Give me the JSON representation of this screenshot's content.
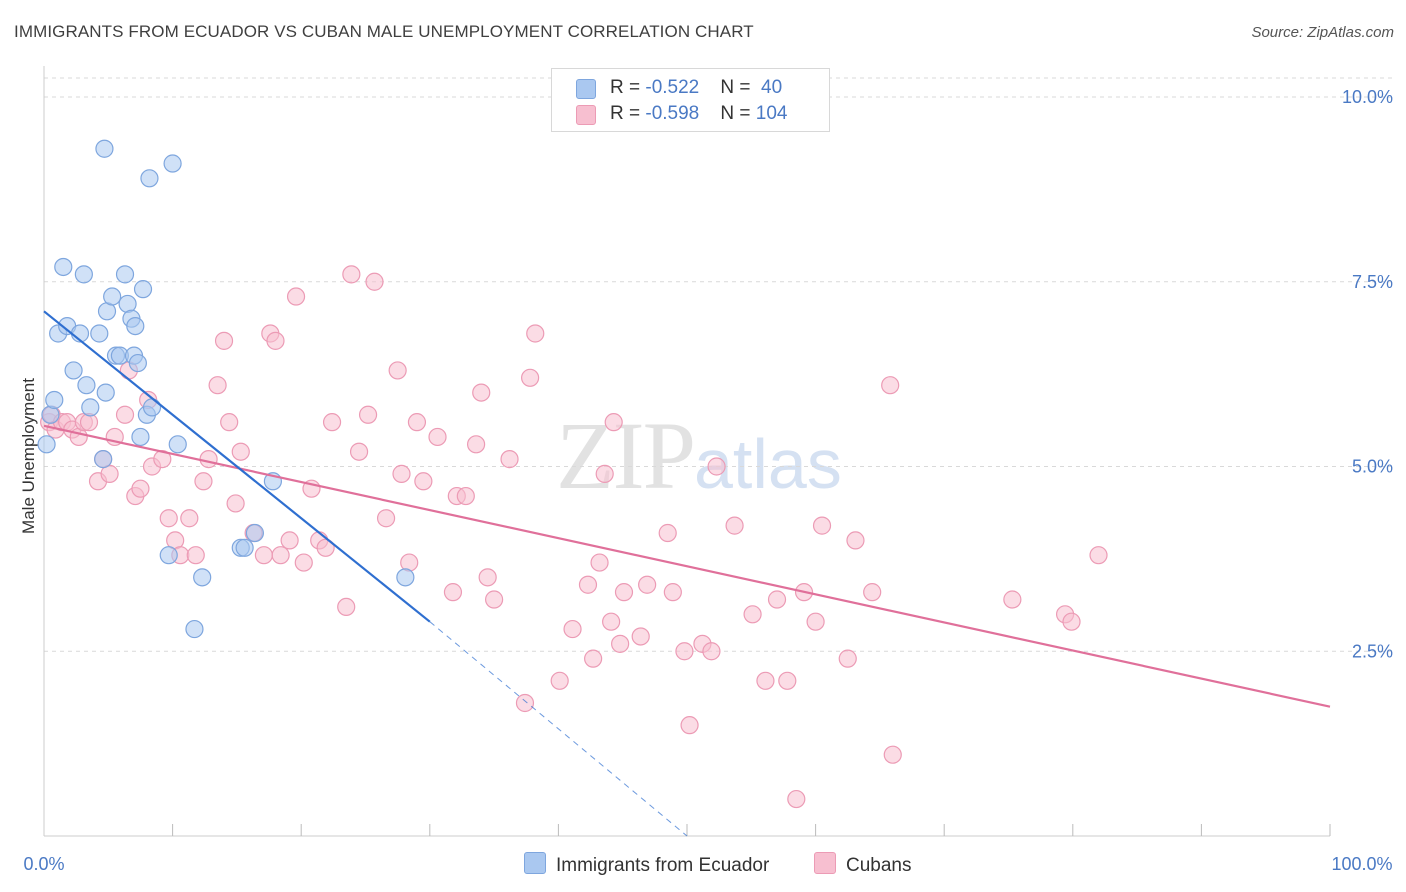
{
  "header": {
    "title": "IMMIGRANTS FROM ECUADOR VS CUBAN MALE UNEMPLOYMENT CORRELATION CHART",
    "source": "Source: ZipAtlas.com"
  },
  "watermark": {
    "zip": "ZIP",
    "atlas": "atlas"
  },
  "legend": {
    "rows": [
      {
        "r_label": "R = ",
        "r_value": "-0.522",
        "n_label": "N = ",
        "n_value": " 40"
      },
      {
        "r_label": "R = ",
        "r_value": "-0.598",
        "n_label": "N = ",
        "n_value": "104"
      }
    ]
  },
  "bottom_legend": {
    "items": [
      {
        "label": "Immigrants from Ecuador"
      },
      {
        "label": "Cubans"
      }
    ]
  },
  "colors": {
    "series1_fill": "#aac8f0",
    "series1_stroke": "#7ea6de",
    "series1_line": "#2f6fd0",
    "series2_fill": "#f7bfd0",
    "series2_stroke": "#ec9bb5",
    "series2_line": "#e0709a",
    "tick": "#4a79c4",
    "grid": "#d9d9d9"
  },
  "chart_data": {
    "type": "scatter",
    "title": "IMMIGRANTS FROM ECUADOR VS CUBAN MALE UNEMPLOYMENT CORRELATION CHART",
    "xlabel": "",
    "ylabel": "Male Unemployment",
    "xlim": [
      0,
      100
    ],
    "ylim": [
      0,
      10.5
    ],
    "x_tick_labels": [
      "0.0%",
      "100.0%"
    ],
    "y_ticks": [
      2.5,
      5.0,
      7.5,
      10.0
    ],
    "y_tick_labels": [
      "2.5%",
      "5.0%",
      "7.5%",
      "10.0%"
    ],
    "grid": true,
    "legend_position": "top-center",
    "series": [
      {
        "name": "Immigrants from Ecuador",
        "r": -0.522,
        "n": 40,
        "points": [
          [
            0.2,
            5.3
          ],
          [
            0.5,
            5.7
          ],
          [
            0.8,
            5.9
          ],
          [
            1.1,
            6.8
          ],
          [
            1.5,
            7.7
          ],
          [
            1.8,
            6.9
          ],
          [
            2.3,
            6.3
          ],
          [
            2.8,
            6.8
          ],
          [
            3.3,
            6.1
          ],
          [
            3.6,
            5.8
          ],
          [
            3.1,
            7.6
          ],
          [
            4.3,
            6.8
          ],
          [
            4.6,
            5.1
          ],
          [
            4.8,
            6.0
          ],
          [
            4.7,
            9.3
          ],
          [
            4.9,
            7.1
          ],
          [
            5.3,
            7.3
          ],
          [
            5.6,
            6.5
          ],
          [
            5.9,
            6.5
          ],
          [
            6.3,
            7.6
          ],
          [
            6.5,
            7.2
          ],
          [
            6.8,
            7.0
          ],
          [
            7.0,
            6.5
          ],
          [
            7.1,
            6.9
          ],
          [
            7.3,
            6.4
          ],
          [
            7.5,
            5.4
          ],
          [
            7.7,
            7.4
          ],
          [
            8.0,
            5.7
          ],
          [
            8.2,
            8.9
          ],
          [
            8.4,
            5.8
          ],
          [
            9.7,
            3.8
          ],
          [
            10.0,
            9.1
          ],
          [
            10.4,
            5.3
          ],
          [
            11.7,
            2.8
          ],
          [
            12.3,
            3.5
          ],
          [
            15.3,
            3.9
          ],
          [
            15.6,
            3.9
          ],
          [
            16.4,
            4.1
          ],
          [
            17.8,
            4.8
          ],
          [
            28.1,
            3.5
          ]
        ],
        "trend": {
          "x": [
            0,
            30
          ],
          "y": [
            7.1,
            2.9
          ]
        },
        "trend_extension": {
          "x": [
            30,
            50
          ],
          "y": [
            2.9,
            0.0
          ]
        }
      },
      {
        "name": "Cubans",
        "r": -0.598,
        "n": 104,
        "points": [
          [
            0.4,
            5.6
          ],
          [
            0.6,
            5.7
          ],
          [
            0.9,
            5.5
          ],
          [
            1.4,
            5.6
          ],
          [
            1.8,
            5.6
          ],
          [
            2.2,
            5.5
          ],
          [
            2.7,
            5.4
          ],
          [
            3.1,
            5.6
          ],
          [
            3.5,
            5.6
          ],
          [
            4.2,
            4.8
          ],
          [
            4.6,
            5.1
          ],
          [
            5.1,
            4.9
          ],
          [
            5.5,
            5.4
          ],
          [
            6.3,
            5.7
          ],
          [
            6.6,
            6.3
          ],
          [
            7.1,
            4.6
          ],
          [
            7.5,
            4.7
          ],
          [
            8.1,
            5.9
          ],
          [
            8.4,
            5.0
          ],
          [
            9.2,
            5.1
          ],
          [
            9.7,
            4.3
          ],
          [
            10.2,
            4.0
          ],
          [
            10.6,
            3.8
          ],
          [
            11.3,
            4.3
          ],
          [
            11.8,
            3.8
          ],
          [
            12.4,
            4.8
          ],
          [
            12.8,
            5.1
          ],
          [
            13.5,
            6.1
          ],
          [
            14.0,
            6.7
          ],
          [
            14.4,
            5.6
          ],
          [
            14.9,
            4.5
          ],
          [
            15.3,
            5.2
          ],
          [
            16.3,
            4.1
          ],
          [
            17.1,
            3.8
          ],
          [
            17.6,
            6.8
          ],
          [
            18.0,
            6.7
          ],
          [
            18.4,
            3.8
          ],
          [
            19.1,
            4.0
          ],
          [
            19.6,
            7.3
          ],
          [
            20.2,
            3.7
          ],
          [
            20.8,
            4.7
          ],
          [
            21.4,
            4.0
          ],
          [
            21.9,
            3.9
          ],
          [
            22.4,
            5.6
          ],
          [
            23.5,
            3.1
          ],
          [
            23.9,
            7.6
          ],
          [
            24.5,
            5.2
          ],
          [
            25.2,
            5.7
          ],
          [
            25.7,
            7.5
          ],
          [
            26.6,
            4.3
          ],
          [
            27.5,
            6.3
          ],
          [
            27.8,
            4.9
          ],
          [
            28.4,
            3.7
          ],
          [
            29.0,
            5.6
          ],
          [
            29.5,
            4.8
          ],
          [
            30.6,
            5.4
          ],
          [
            31.8,
            3.3
          ],
          [
            32.1,
            4.6
          ],
          [
            32.8,
            4.6
          ],
          [
            33.6,
            5.3
          ],
          [
            34.0,
            6.0
          ],
          [
            34.5,
            3.5
          ],
          [
            35.0,
            3.2
          ],
          [
            36.2,
            5.1
          ],
          [
            37.4,
            1.8
          ],
          [
            37.8,
            6.2
          ],
          [
            38.2,
            6.8
          ],
          [
            40.1,
            2.1
          ],
          [
            41.1,
            2.8
          ],
          [
            42.3,
            3.4
          ],
          [
            42.7,
            2.4
          ],
          [
            43.2,
            3.7
          ],
          [
            43.6,
            4.9
          ],
          [
            44.1,
            2.9
          ],
          [
            44.3,
            5.6
          ],
          [
            44.8,
            2.6
          ],
          [
            45.1,
            3.3
          ],
          [
            46.4,
            2.7
          ],
          [
            46.9,
            3.4
          ],
          [
            48.5,
            4.1
          ],
          [
            48.9,
            3.3
          ],
          [
            49.8,
            2.5
          ],
          [
            50.2,
            1.5
          ],
          [
            51.2,
            2.6
          ],
          [
            51.9,
            2.5
          ],
          [
            52.3,
            5.0
          ],
          [
            53.7,
            4.2
          ],
          [
            55.1,
            3.0
          ],
          [
            56.1,
            2.1
          ],
          [
            57.0,
            3.2
          ],
          [
            57.8,
            2.1
          ],
          [
            58.5,
            0.5
          ],
          [
            59.1,
            3.3
          ],
          [
            60.0,
            2.9
          ],
          [
            60.5,
            4.2
          ],
          [
            62.5,
            2.4
          ],
          [
            63.1,
            4.0
          ],
          [
            64.4,
            3.3
          ],
          [
            65.8,
            6.1
          ],
          [
            66.0,
            1.1
          ],
          [
            75.3,
            3.2
          ],
          [
            79.4,
            3.0
          ],
          [
            79.9,
            2.9
          ],
          [
            82.0,
            3.8
          ]
        ],
        "trend": {
          "x": [
            0,
            100
          ],
          "y": [
            5.55,
            1.75
          ]
        }
      }
    ]
  }
}
